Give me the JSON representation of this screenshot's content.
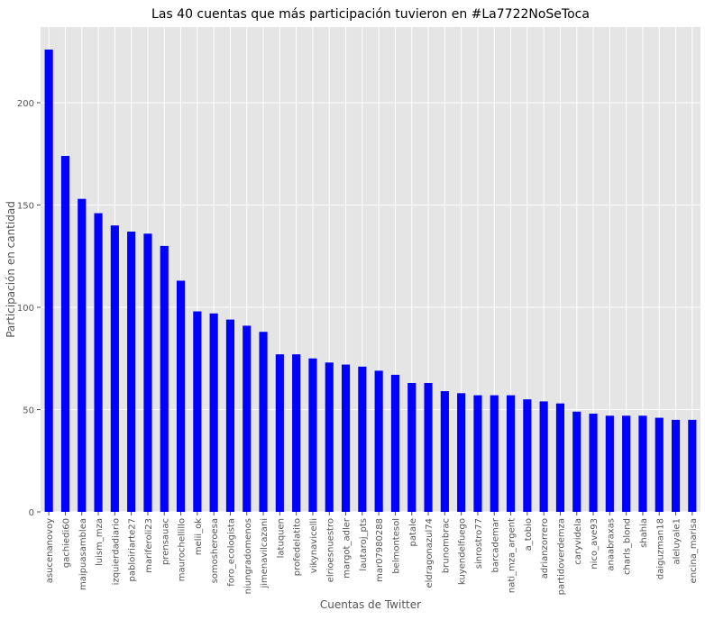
{
  "chart_data": {
    "type": "bar",
    "title": "Las 40 cuentas que más participación tuvieron en #La7722NoSeToca",
    "xlabel": "Cuentas de Twitter",
    "ylabel": "Participación en cantidad",
    "ylim": [
      0,
      237
    ],
    "yticks": [
      0,
      50,
      100,
      150,
      200
    ],
    "grid": true,
    "legend": "none",
    "colors": {
      "bar": "#0000ff",
      "plot_background": "#e5e5e5",
      "grid": "#ffffff",
      "text": "#555555",
      "title": "#000000"
    },
    "categories": [
      "asucenanovoy",
      "gachiedi60",
      "maipuasamblea",
      "luism_mza",
      "izquierdadiario",
      "pabloiriarte27",
      "mariferoli23",
      "prensauac",
      "maurochellillo",
      "melii_ok",
      "somosheroesa",
      "foro_ecologista",
      "niungradomenos",
      "jimenavilcazani",
      "latuquen",
      "profedelatito",
      "vikynavicelli",
      "elrioesnuestro",
      "margot_adler",
      "lautaroj_pts",
      "mar07980288",
      "belmontesol",
      "patale",
      "eldragonazul74",
      "brunombrac",
      "kuyendelfuego",
      "sinrostro77",
      "barcademar",
      "nati_mza_argent",
      "a_tobio",
      "adrianzorrero",
      "partidoverdemza",
      "caryvidela",
      "nico_ave93",
      "anaabraxas",
      "charls_blond",
      "shahia",
      "daiguzman18",
      "aleluyale1",
      "encina_marisa"
    ],
    "values": [
      226,
      174,
      153,
      146,
      140,
      137,
      136,
      130,
      113,
      98,
      97,
      94,
      91,
      88,
      77,
      77,
      75,
      73,
      72,
      71,
      69,
      67,
      63,
      63,
      59,
      58,
      57,
      57,
      57,
      55,
      54,
      53,
      49,
      48,
      47,
      47,
      47,
      46,
      45,
      45
    ]
  }
}
